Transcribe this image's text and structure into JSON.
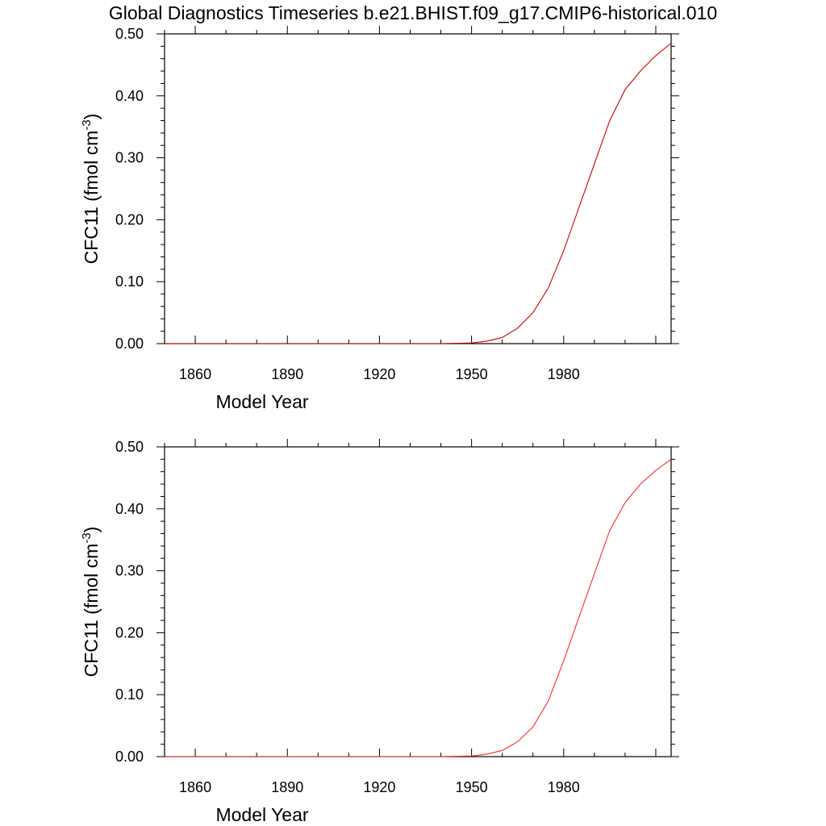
{
  "title": "Global Diagnostics Timeseries b.e21.BHIST.f09_g17.CMIP6-historical.010",
  "chart_data": [
    {
      "type": "line",
      "xlabel": "Model Year",
      "ylabel": "CFC11 (fmol cm",
      "ylabel_sup": "-3",
      "ylabel_close": ")",
      "xlim": [
        1850,
        2015
      ],
      "ylim": [
        0,
        0.5
      ],
      "xticks": [
        "1860",
        "1890",
        "1920",
        "1950",
        "1980"
      ],
      "yticks": [
        "0.00",
        "0.10",
        "0.20",
        "0.30",
        "0.40",
        "0.50"
      ],
      "grid": false,
      "series": [
        {
          "color": "#cc0000",
          "x": [
            1850,
            1900,
            1940,
            1950,
            1955,
            1960,
            1965,
            1970,
            1975,
            1980,
            1985,
            1990,
            1995,
            2000,
            2005,
            2010,
            2015
          ],
          "y": [
            0,
            0,
            0,
            0.001,
            0.004,
            0.01,
            0.025,
            0.05,
            0.09,
            0.15,
            0.22,
            0.29,
            0.36,
            0.41,
            0.44,
            0.465,
            0.485
          ]
        }
      ]
    },
    {
      "type": "line",
      "xlabel": "Model Year",
      "ylabel": "CFC11 (fmol cm",
      "ylabel_sup": "-3",
      "ylabel_close": ")",
      "xlim": [
        1850,
        2015
      ],
      "ylim": [
        0,
        0.5
      ],
      "xticks": [
        "1860",
        "1890",
        "1920",
        "1950",
        "1980"
      ],
      "yticks": [
        "0.00",
        "0.10",
        "0.20",
        "0.30",
        "0.40",
        "0.50"
      ],
      "grid": false,
      "series": [
        {
          "color": "#ff2a2a",
          "x": [
            1850,
            1900,
            1940,
            1950,
            1955,
            1960,
            1965,
            1970,
            1975,
            1980,
            1985,
            1990,
            1995,
            2000,
            2005,
            2010,
            2015
          ],
          "y": [
            0,
            0,
            0,
            0.001,
            0.004,
            0.01,
            0.024,
            0.048,
            0.09,
            0.155,
            0.225,
            0.295,
            0.365,
            0.41,
            0.44,
            0.462,
            0.48
          ]
        }
      ]
    }
  ]
}
